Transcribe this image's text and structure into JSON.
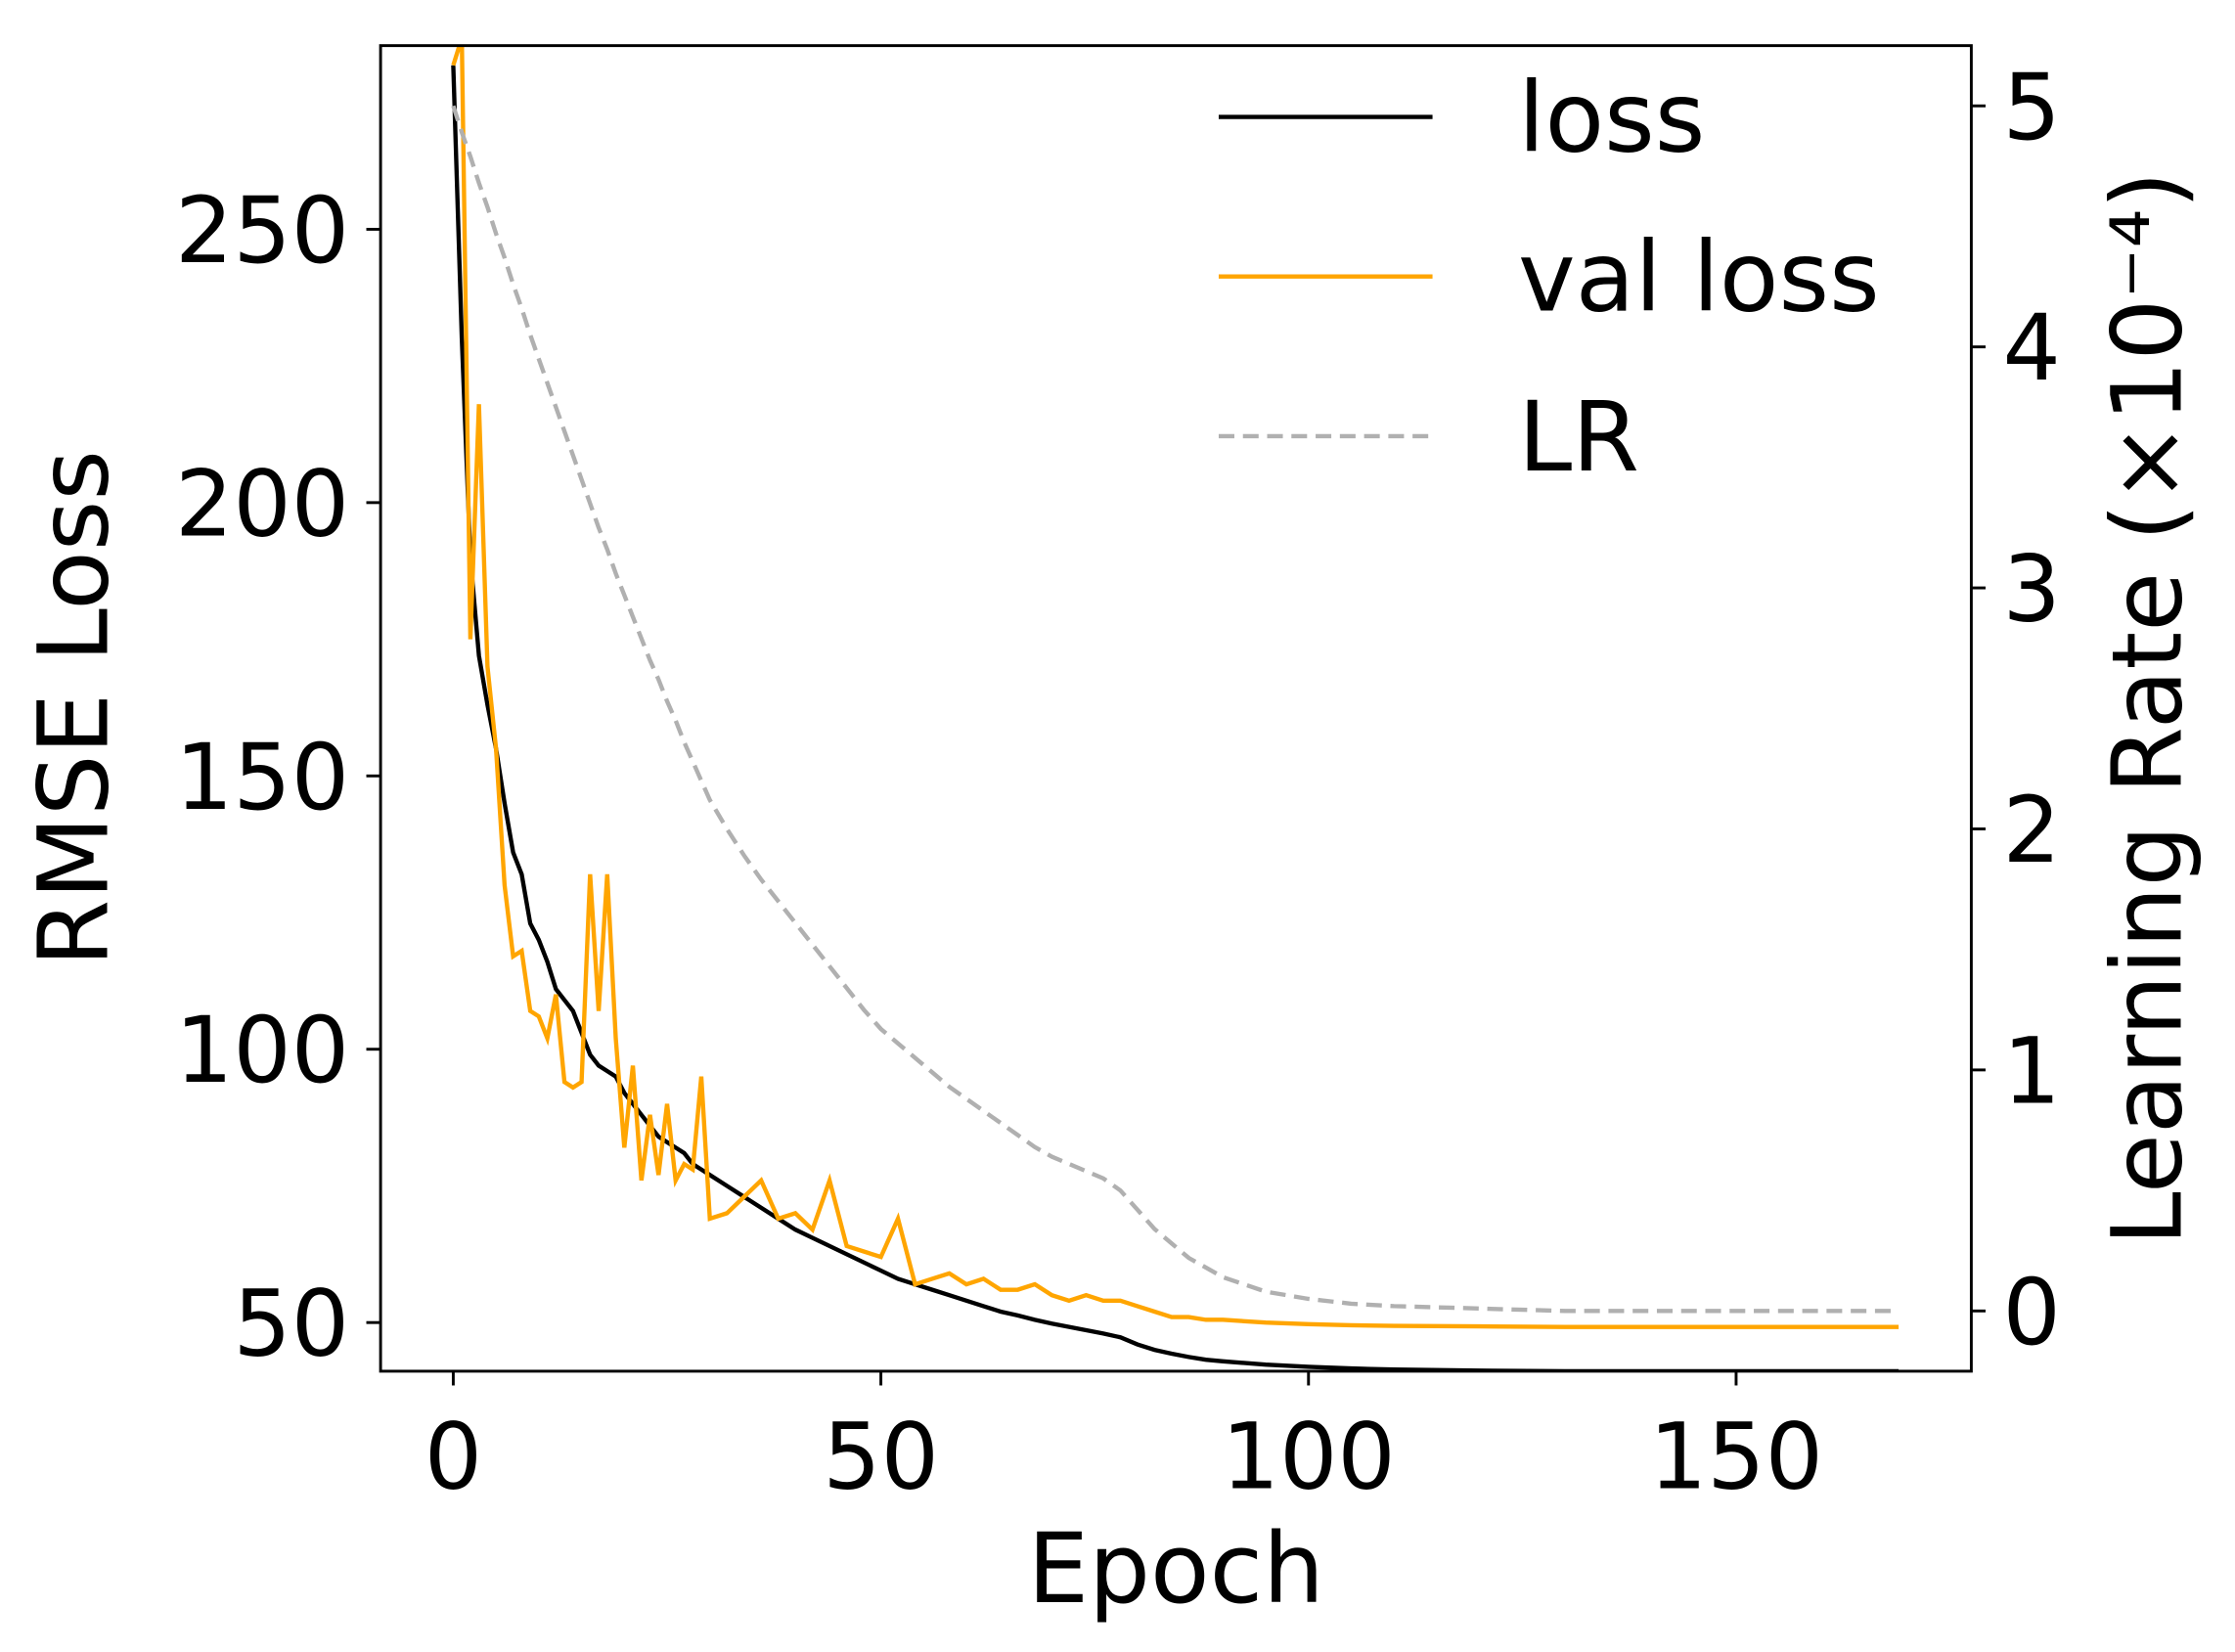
{
  "chart_data": {
    "type": "line",
    "x_label": "Epoch",
    "y_label": "RMSE Loss",
    "y2_label": "Learning Rate (×10⁻⁴)",
    "x": [
      0,
      1,
      2,
      3,
      4,
      5,
      6,
      7,
      8,
      9,
      10,
      11,
      12,
      13,
      14,
      15,
      16,
      17,
      18,
      19,
      20,
      21,
      22,
      23,
      24,
      25,
      26,
      27,
      28,
      29,
      30,
      32,
      34,
      36,
      38,
      40,
      42,
      44,
      46,
      48,
      50,
      52,
      54,
      56,
      58,
      60,
      62,
      64,
      66,
      68,
      70,
      72,
      74,
      76,
      78,
      80,
      82,
      84,
      86,
      88,
      90,
      95,
      100,
      105,
      110,
      120,
      130,
      140,
      150,
      160,
      169
    ],
    "series": [
      {
        "name": "loss",
        "color": "#000000",
        "linestyle": "solid",
        "axis": "y",
        "values": [
          280,
          230,
          190,
          172,
          163,
          155,
          145,
          136,
          132,
          123,
          120,
          116,
          111,
          109,
          107,
          103,
          99,
          97,
          96,
          95,
          92,
          90,
          88,
          86,
          84,
          83,
          82,
          81,
          79,
          78,
          77,
          75,
          73,
          71,
          69,
          67,
          65.5,
          64,
          62.5,
          61,
          59.5,
          58,
          57,
          56,
          55,
          54,
          53,
          52,
          51.3,
          50.5,
          49.8,
          49.2,
          48.6,
          48,
          47.3,
          46,
          45,
          44.3,
          43.7,
          43.2,
          42.9,
          42.3,
          41.9,
          41.6,
          41.4,
          41.2,
          41.1,
          41.1,
          41.1,
          41.1,
          41.1
        ]
      },
      {
        "name": "val loss",
        "color": "#ffa500",
        "linestyle": "solid",
        "axis": "y",
        "values": [
          280,
          285,
          175,
          218,
          170,
          155,
          130,
          117,
          118,
          107,
          106,
          102,
          110,
          94,
          93,
          94,
          132,
          107,
          132,
          102,
          82,
          97,
          76,
          88,
          77,
          90,
          76,
          79,
          78,
          95,
          69,
          70,
          73,
          76,
          69,
          70,
          67,
          76,
          64,
          63,
          62,
          69,
          57,
          58,
          59,
          57,
          58,
          56,
          56,
          57,
          55,
          54,
          55,
          54,
          54,
          53,
          52,
          51,
          51,
          50.5,
          50.5,
          50,
          49.7,
          49.5,
          49.4,
          49.3,
          49.2,
          49.2,
          49.2,
          49.2,
          49.2
        ]
      },
      {
        "name": "LR",
        "color": "#b0b0b0",
        "linestyle": "dashed",
        "axis": "y2",
        "values": [
          5.0,
          4.89,
          4.79,
          4.68,
          4.58,
          4.47,
          4.37,
          4.26,
          4.16,
          4.05,
          3.95,
          3.85,
          3.75,
          3.65,
          3.55,
          3.45,
          3.35,
          3.25,
          3.16,
          3.06,
          2.97,
          2.88,
          2.79,
          2.7,
          2.62,
          2.53,
          2.45,
          2.36,
          2.28,
          2.2,
          2.12,
          2.0,
          1.89,
          1.79,
          1.7,
          1.61,
          1.52,
          1.43,
          1.34,
          1.25,
          1.17,
          1.11,
          1.05,
          0.99,
          0.93,
          0.88,
          0.83,
          0.78,
          0.73,
          0.68,
          0.64,
          0.61,
          0.58,
          0.55,
          0.5,
          0.42,
          0.34,
          0.28,
          0.22,
          0.18,
          0.14,
          0.08,
          0.05,
          0.03,
          0.02,
          0.01,
          0,
          0,
          0,
          0,
          0
        ]
      }
    ],
    "xlim": [
      -8.5,
      177.5
    ],
    "xticks": [
      0,
      50,
      100,
      150
    ],
    "ylim": [
      41.1,
      283.6
    ],
    "yticks": [
      50,
      100,
      150,
      200,
      250
    ],
    "y2lim": [
      -0.25,
      5.25
    ],
    "y2ticks": [
      0,
      1,
      2,
      3,
      4,
      5
    ],
    "legend": "upper right",
    "grid": false
  }
}
